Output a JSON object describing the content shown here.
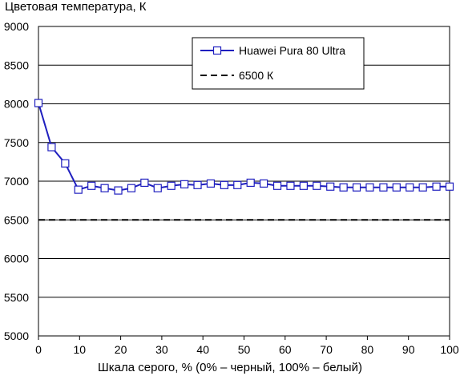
{
  "chart_data": {
    "type": "line",
    "title": "Цветовая температура, К",
    "xlabel": "Шкала серого, % (0% – черный, 100% – белый)",
    "ylabel": "",
    "xlim": [
      0,
      100
    ],
    "ylim": [
      5000,
      9000
    ],
    "xticks": [
      0,
      10,
      20,
      30,
      40,
      50,
      60,
      70,
      80,
      90,
      100
    ],
    "yticks": [
      5000,
      5500,
      6000,
      6500,
      7000,
      7500,
      8000,
      8500,
      9000
    ],
    "grid": "horizontal",
    "legend_position": "top-right",
    "series": [
      {
        "name": "Huawei Pura 80 Ultra",
        "color": "#1f1fbf",
        "marker": "square",
        "x": [
          0,
          3.2,
          6.5,
          9.7,
          12.9,
          16.1,
          19.4,
          22.6,
          25.8,
          29.0,
          32.3,
          35.5,
          38.7,
          41.9,
          45.2,
          48.4,
          51.6,
          54.8,
          58.1,
          61.3,
          64.5,
          67.7,
          71.0,
          74.2,
          77.4,
          80.6,
          83.9,
          87.1,
          90.3,
          93.5,
          96.8,
          100
        ],
        "values": [
          8010,
          7440,
          7230,
          6890,
          6940,
          6910,
          6880,
          6910,
          6980,
          6910,
          6940,
          6960,
          6950,
          6970,
          6950,
          6950,
          6980,
          6970,
          6940,
          6940,
          6940,
          6940,
          6930,
          6920,
          6920,
          6920,
          6920,
          6920,
          6920,
          6920,
          6930,
          6930
        ]
      },
      {
        "name": "6500 К",
        "color": "#000000",
        "style": "dashed",
        "x": [
          0,
          100
        ],
        "values": [
          6500,
          6500
        ]
      }
    ]
  }
}
